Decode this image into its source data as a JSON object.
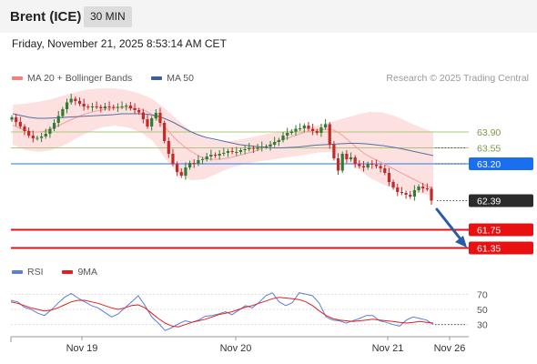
{
  "header": {
    "instrument": "Brent (ICE)",
    "interval": "30 MIN",
    "datetime": "Friday, November 21, 2025 8:53:14 AM CET"
  },
  "legend": {
    "main": [
      {
        "label": "MA 20 + Bollinger Bands",
        "color": "#f28080"
      },
      {
        "label": "MA 50",
        "color": "#3a5f9a"
      }
    ],
    "rsi": [
      {
        "label": "RSI",
        "color": "#5b7fd6"
      },
      {
        "label": "9MA",
        "color": "#e02020"
      }
    ]
  },
  "credit": "Research © 2025 Trading Central",
  "colors": {
    "candle_up": "#2e7d32",
    "candle_down": "#c62828",
    "resistance": "#a8c878",
    "pivot": "#4a8ff0",
    "support": "#e81010",
    "bollinger_fill": "#fde0e0",
    "ma20": "#f4a0a0",
    "ma50": "#5570a0",
    "arrow": "#2b5aa8"
  },
  "chart_data": [
    {
      "type": "line",
      "name": "price",
      "x_labels": [
        "Nov 19",
        "Nov 20",
        "Nov 21",
        "Nov 26"
      ],
      "ylim": [
        61.2,
        64.9
      ],
      "levels": [
        {
          "value": 63.9,
          "label": "63.90",
          "kind": "resistance"
        },
        {
          "value": 63.55,
          "label": "63.55",
          "kind": "resistance"
        },
        {
          "value": 63.2,
          "label": "63.20",
          "kind": "pivot"
        },
        {
          "value": 62.39,
          "label": "62.39",
          "kind": "last"
        },
        {
          "value": 61.75,
          "label": "61.75",
          "kind": "support"
        },
        {
          "value": 61.35,
          "label": "61.35",
          "kind": "support"
        }
      ],
      "series": [
        {
          "name": "price",
          "values": [
            64.22,
            64.12,
            64.02,
            63.92,
            63.82,
            63.76,
            63.77,
            63.8,
            63.86,
            63.97,
            64.1,
            64.25,
            64.4,
            64.55,
            64.63,
            64.58,
            64.52,
            64.46,
            64.44,
            64.46,
            64.45,
            64.42,
            64.46,
            64.45,
            64.43,
            64.45,
            64.46,
            64.48,
            64.42,
            64.38,
            64.33,
            64.18,
            64.02,
            64.2,
            64.32,
            64.1,
            63.7,
            63.42,
            63.2,
            63.02,
            62.94,
            63.12,
            63.22,
            63.2,
            63.28,
            63.3,
            63.36,
            63.4,
            63.38,
            63.42,
            63.44,
            63.48,
            63.46,
            63.46,
            63.5,
            63.52,
            63.55,
            63.53,
            63.56,
            63.58,
            63.58,
            63.62,
            63.68,
            63.72,
            63.82,
            63.88,
            63.91,
            63.97,
            63.98,
            64.04,
            63.97,
            63.92,
            63.88,
            64.0,
            64.07,
            63.62,
            63.32,
            63.05,
            63.42,
            63.3,
            63.34,
            63.2,
            63.15,
            63.12,
            63.2,
            63.18,
            63.15,
            63.1,
            63.0,
            62.8,
            62.68,
            62.58,
            62.56,
            62.52,
            62.48,
            62.62,
            62.7,
            62.66,
            62.65,
            62.39
          ]
        },
        {
          "name": "MA 20",
          "values": [
            64.05,
            64.0,
            63.95,
            63.92,
            63.9,
            63.9,
            63.92,
            63.96,
            64.01,
            64.06,
            64.12,
            64.17,
            64.22,
            64.27,
            64.31,
            64.34,
            64.37,
            64.39,
            64.41,
            64.43,
            64.44,
            64.44,
            64.43,
            64.42,
            64.4,
            64.36,
            64.3,
            64.2,
            64.08,
            63.95,
            63.82,
            63.7,
            63.6,
            63.51,
            63.44,
            63.37,
            63.32,
            63.3,
            63.3,
            63.3,
            63.32,
            63.34,
            63.37,
            63.4,
            63.43,
            63.46,
            63.5,
            63.55,
            63.6,
            63.65,
            63.7,
            63.75,
            63.78,
            63.82,
            63.86,
            63.9,
            63.92,
            63.94,
            63.95,
            63.96,
            63.95,
            63.9,
            63.82,
            63.72,
            63.62,
            63.52,
            63.43,
            63.36,
            63.3,
            63.24,
            63.18,
            63.12,
            63.06,
            63.0,
            62.94,
            62.88,
            62.82,
            62.76,
            62.7,
            62.66
          ]
        },
        {
          "name": "MA 50",
          "values": [
            64.3,
            64.26,
            64.22,
            64.2,
            64.2,
            64.21,
            64.22,
            64.23,
            64.24,
            64.25,
            64.26,
            64.27,
            64.28,
            64.3,
            64.3,
            64.3,
            64.29,
            64.26,
            64.2,
            64.12,
            64.02,
            63.92,
            63.84,
            63.78,
            63.74,
            63.7,
            63.66,
            63.62,
            63.6,
            63.58,
            63.56,
            63.55,
            63.55,
            63.56,
            63.57,
            63.59,
            63.61,
            63.62,
            63.63,
            63.64,
            63.65,
            63.65,
            63.64,
            63.62,
            63.6,
            63.57,
            63.54,
            63.5,
            63.46,
            63.42,
            63.38
          ]
        },
        {
          "name": "BB upper",
          "values": [
            64.5,
            64.52,
            64.56,
            64.62,
            64.7,
            64.78,
            64.84,
            64.86,
            64.86,
            64.82,
            64.74,
            64.62,
            64.4,
            64.15,
            63.92,
            63.78,
            63.7,
            63.7,
            63.74,
            63.8,
            63.86,
            63.9,
            63.95,
            64.0,
            64.05,
            64.12,
            64.2,
            64.28,
            64.34,
            64.33,
            64.25,
            64.12,
            64.0,
            63.9
          ]
        },
        {
          "name": "BB lower",
          "values": [
            63.62,
            63.5,
            63.46,
            63.5,
            63.6,
            63.76,
            63.9,
            64.0,
            64.04,
            64.0,
            63.9,
            63.7,
            63.3,
            62.98,
            62.84,
            62.86,
            62.98,
            63.1,
            63.18,
            63.24,
            63.28,
            63.32,
            63.36,
            63.4,
            63.45,
            63.46,
            63.3,
            63.1,
            62.9,
            62.75,
            62.65,
            62.6,
            62.55,
            62.5
          ]
        }
      ]
    },
    {
      "type": "line",
      "name": "rsi",
      "ylim": [
        20,
        80
      ],
      "y_ticks": [
        70,
        50,
        30
      ],
      "series": [
        {
          "name": "RSI",
          "values": [
            62,
            60,
            53,
            50,
            45,
            42,
            49,
            58,
            66,
            71,
            65,
            60,
            55,
            52,
            46,
            40,
            44,
            52,
            60,
            68,
            55,
            40,
            32,
            22,
            26,
            31,
            35,
            33,
            36,
            41,
            42,
            44,
            47,
            43,
            49,
            55,
            52,
            59,
            68,
            72,
            60,
            55,
            59,
            72,
            70,
            68,
            58,
            40,
            36,
            35,
            32,
            35,
            38,
            42,
            42,
            35,
            33,
            30,
            28,
            36,
            40,
            38,
            36,
            30
          ]
        },
        {
          "name": "9MA",
          "values": [
            60,
            58,
            55,
            52,
            50,
            48,
            49,
            52,
            56,
            60,
            62,
            62,
            60,
            58,
            55,
            52,
            50,
            52,
            55,
            56,
            52,
            45,
            38,
            32,
            28,
            27,
            30,
            33,
            35,
            37,
            40,
            43,
            45,
            47,
            50,
            53,
            55,
            58,
            61,
            64,
            66,
            65,
            64,
            63,
            60,
            55,
            48,
            42,
            38,
            36,
            35,
            34,
            35,
            36,
            37,
            36,
            35,
            34,
            33,
            32,
            33,
            34,
            33,
            32
          ]
        }
      ]
    }
  ]
}
